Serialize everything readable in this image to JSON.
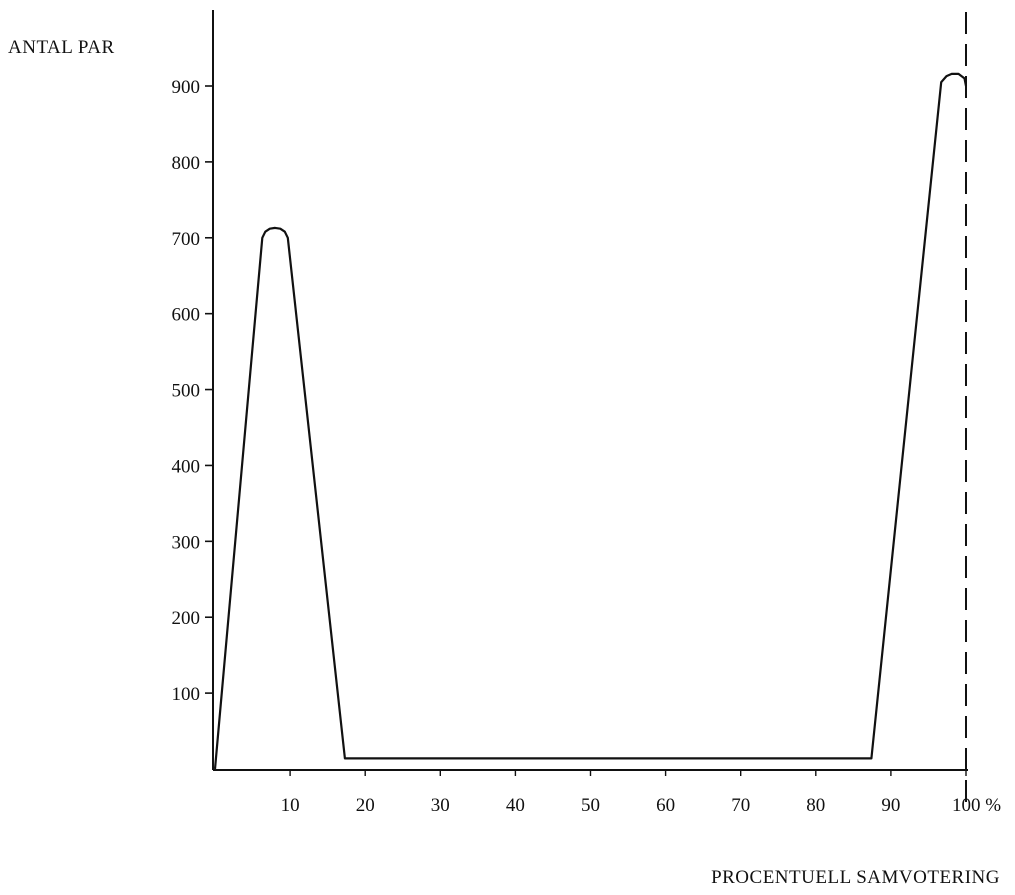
{
  "chart_data": {
    "type": "line",
    "ylabel": "ANTAL PAR",
    "xlabel": "PROCENTUELL SAMVOTERING",
    "xlim": [
      0,
      100
    ],
    "ylim": [
      0,
      920
    ],
    "x_ticks": [
      10,
      20,
      30,
      40,
      50,
      60,
      70,
      80,
      90,
      100
    ],
    "x_tick_labels": [
      "10",
      "20",
      "30",
      "40",
      "50",
      "60",
      "70",
      "80",
      "90",
      "100 %"
    ],
    "y_ticks": [
      100,
      200,
      300,
      400,
      500,
      600,
      700,
      800,
      900
    ],
    "y_tick_labels": [
      "100",
      "200",
      "300",
      "400",
      "500",
      "600",
      "700",
      "800",
      "900"
    ],
    "grid": false,
    "reference_line": {
      "x": 100,
      "style": "dashed"
    },
    "series": [
      {
        "x": [
          0,
          6.3,
          6.7,
          7.3,
          8,
          8.7,
          9.3,
          9.7,
          17.3,
          87.4,
          96.7,
          97.4,
          98.1,
          99,
          99.8,
          100
        ],
        "values": [
          0,
          700,
          708,
          712,
          713,
          712,
          708,
          700,
          14,
          14,
          905,
          913,
          916,
          916,
          910,
          900
        ]
      }
    ]
  }
}
